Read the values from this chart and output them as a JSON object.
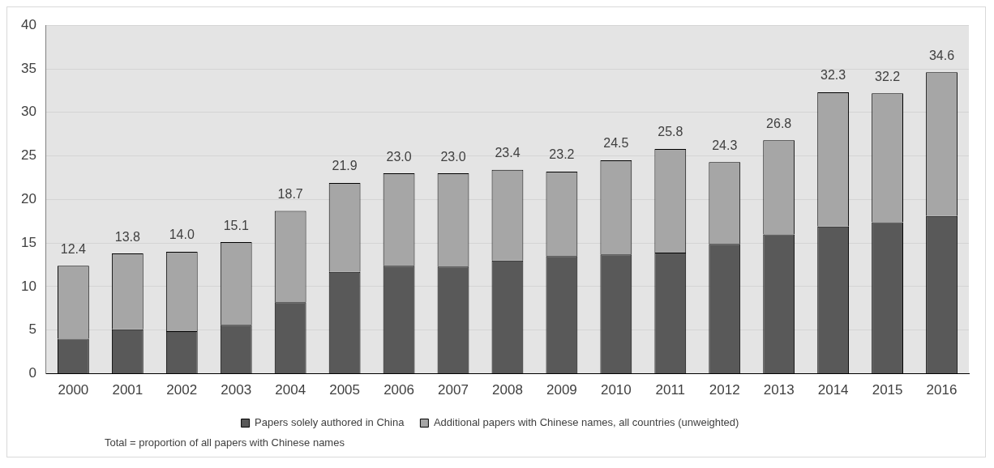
{
  "chart_data": {
    "type": "bar",
    "stacked": true,
    "categories": [
      "2000",
      "2001",
      "2002",
      "2003",
      "2004",
      "2005",
      "2006",
      "2007",
      "2008",
      "2009",
      "2010",
      "2011",
      "2012",
      "2013",
      "2014",
      "2015",
      "2016"
    ],
    "series": [
      {
        "name": "Papers solely authored in China",
        "color": "#595959",
        "values": [
          4.0,
          5.1,
          4.9,
          5.6,
          8.2,
          11.7,
          12.4,
          12.3,
          13.0,
          13.5,
          13.7,
          13.9,
          14.9,
          16.0,
          16.9,
          17.4,
          18.1
        ]
      },
      {
        "name": "Additional papers with Chinese names, all countries (unweighted)",
        "color": "#a6a6a6",
        "values": [
          8.4,
          8.7,
          9.1,
          9.5,
          10.5,
          10.2,
          10.6,
          10.7,
          10.4,
          9.7,
          10.8,
          11.9,
          9.4,
          10.8,
          15.4,
          14.8,
          16.5
        ]
      }
    ],
    "totals": [
      "12.4",
      "13.8",
      "14.0",
      "15.1",
      "18.7",
      "21.9",
      "23.0",
      "23.0",
      "23.4",
      "23.2",
      "24.5",
      "25.8",
      "24.3",
      "26.8",
      "32.3",
      "32.2",
      "34.6"
    ],
    "ylim": [
      0,
      40
    ],
    "yticks": [
      0,
      5,
      10,
      15,
      20,
      25,
      30,
      35,
      40
    ],
    "grid": "y",
    "legend": "bottom",
    "annotations": [
      "Total = proportion of all papers with Chinese names"
    ]
  }
}
